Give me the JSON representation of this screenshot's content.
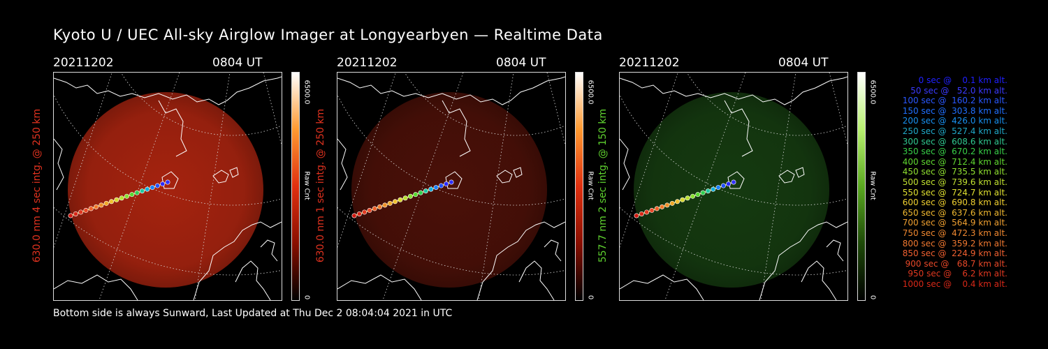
{
  "title": "Kyoto U / UEC All-sky Airglow Imager at Longyearbyen — Realtime Data",
  "footer": "Bottom side is always Sunward, Last Updated at Thu Dec  2 08:04:04 2021 in UTC",
  "panels": [
    {
      "date": "20211202",
      "time": "0804 UT",
      "ylabel": "630.0 nm 4 sec intg. @ 250 km",
      "ylabel_color": "#e0321f",
      "cbar_max": "6500.0",
      "cbar_min": "0",
      "cbar_title": "Raw Cnt",
      "cbar_colors": [
        "#ffffff",
        "#ff9a30",
        "#e03010",
        "#8a0f00",
        "#000000"
      ],
      "glow_color": "#a5230f",
      "glow_opacity": 0.95
    },
    {
      "date": "20211202",
      "time": "0804 UT",
      "ylabel": "630.0 nm 1 sec intg. @ 250 km",
      "ylabel_color": "#e0321f",
      "cbar_max": "6500.0",
      "cbar_min": "0",
      "cbar_title": "Raw Cnt",
      "cbar_colors": [
        "#ffffff",
        "#ff9a30",
        "#e03010",
        "#8a0f00",
        "#000000"
      ],
      "glow_color": "#4a1008",
      "glow_opacity": 0.95
    },
    {
      "date": "20211202",
      "time": "0804 UT",
      "ylabel": "557.7 nm 2 sec intg. @ 150 km",
      "ylabel_color": "#5fd22f",
      "cbar_max": "6500.0",
      "cbar_min": "0",
      "cbar_title": "Raw Cnt",
      "cbar_colors": [
        "#ffffff",
        "#b8f070",
        "#5aa820",
        "#1e4a08",
        "#000000"
      ],
      "glow_color": "#153a10",
      "glow_opacity": 0.95
    }
  ],
  "trajectory_colors": [
    "#3030ff",
    "#2a2aff",
    "#2050ff",
    "#1a80ff",
    "#10b0e0",
    "#20c8a0",
    "#30d050",
    "#58d830",
    "#88e030",
    "#b8e030",
    "#d8d830",
    "#f0c030",
    "#f0a828",
    "#f09028",
    "#f07828",
    "#f06028",
    "#e84828",
    "#e03820",
    "#d82818",
    "#d01810"
  ],
  "legend": [
    {
      "text": "  0 sec @    0.1 km alt.",
      "color": "#2020ff"
    },
    {
      "text": " 50 sec @   52.0 km alt.",
      "color": "#3a3aff"
    },
    {
      "text": "100 sec @  160.2 km alt.",
      "color": "#2a58ff"
    },
    {
      "text": "150 sec @  303.8 km alt.",
      "color": "#2070ff"
    },
    {
      "text": "200 sec @  426.0 km alt.",
      "color": "#1890f0"
    },
    {
      "text": "250 sec @  527.4 km alt.",
      "color": "#20a8c8"
    },
    {
      "text": "300 sec @  608.6 km alt.",
      "color": "#30c890"
    },
    {
      "text": "350 sec @  670.2 km alt.",
      "color": "#38d048"
    },
    {
      "text": "400 sec @  712.4 km alt.",
      "color": "#60d830"
    },
    {
      "text": "450 sec @  735.5 km alt.",
      "color": "#90e030"
    },
    {
      "text": "500 sec @  739.6 km alt.",
      "color": "#c0e030"
    },
    {
      "text": "550 sec @  724.7 km alt.",
      "color": "#e0e030"
    },
    {
      "text": "600 sec @  690.8 km alt.",
      "color": "#f0d030"
    },
    {
      "text": "650 sec @  637.6 km alt.",
      "color": "#f0b830"
    },
    {
      "text": "700 sec @  564.9 km alt.",
      "color": "#f0a030"
    },
    {
      "text": "750 sec @  472.3 km alt.",
      "color": "#f08830"
    },
    {
      "text": "800 sec @  359.2 km alt.",
      "color": "#f07830"
    },
    {
      "text": "850 sec @  224.9 km alt.",
      "color": "#f06030"
    },
    {
      "text": "900 sec @   68.7 km alt.",
      "color": "#e84828"
    },
    {
      "text": "950 sec @    6.2 km alt.",
      "color": "#e03820"
    },
    {
      "text": "1000 sec @    0.4 km alt.",
      "color": "#d82818"
    }
  ]
}
